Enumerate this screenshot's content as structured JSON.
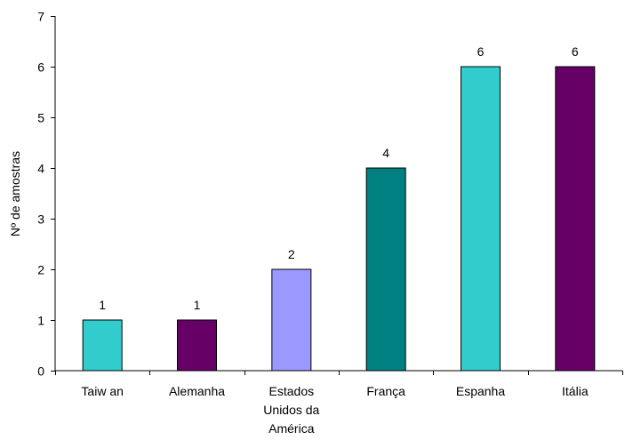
{
  "chart_data": {
    "type": "bar",
    "title": "",
    "xlabel": "",
    "ylabel": "Nº de amostras",
    "ylim": [
      0,
      7
    ],
    "yticks": [
      "0",
      "1",
      "2",
      "3",
      "4",
      "5",
      "6",
      "7"
    ],
    "grid": false,
    "legend": "none",
    "categories": [
      [
        "Taiw an"
      ],
      [
        "Alemanha"
      ],
      [
        "Estados",
        "Unidos da",
        "América"
      ],
      [
        "França"
      ],
      [
        "Espanha"
      ],
      [
        "Itália"
      ]
    ],
    "values": [
      1,
      1,
      2,
      4,
      6,
      6
    ],
    "data_labels": [
      "1",
      "1",
      "2",
      "4",
      "6",
      "6"
    ],
    "colors": [
      "#33CCCC",
      "#660066",
      "#9999FF",
      "#008080",
      "#33CCCC",
      "#660066"
    ],
    "axis_color": "#000000"
  }
}
